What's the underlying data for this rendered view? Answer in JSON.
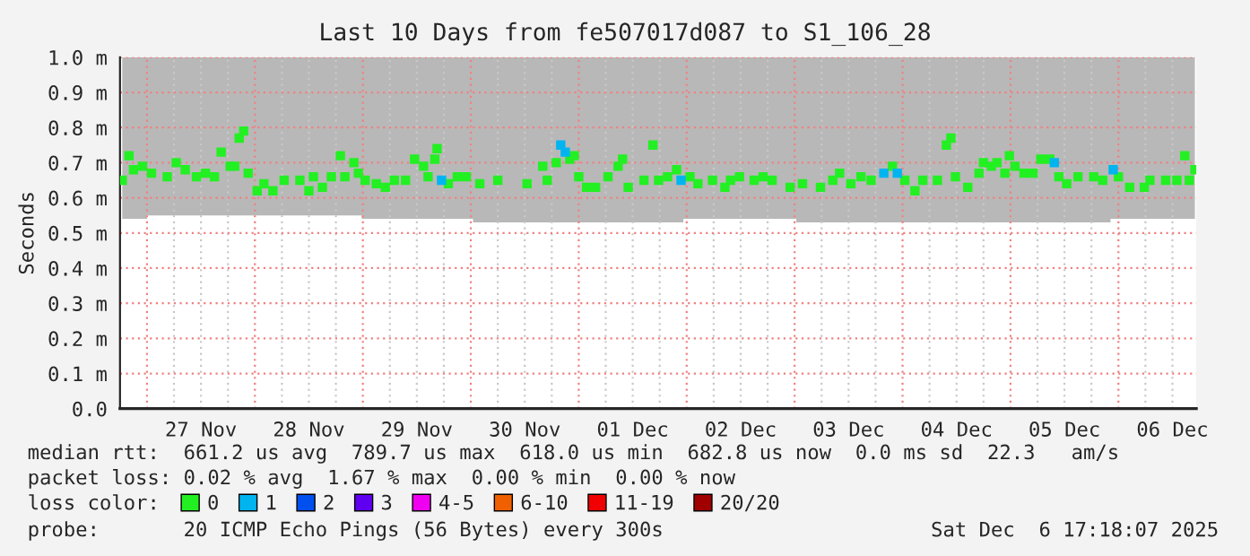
{
  "chart_data": {
    "type": "scatter",
    "title": "Last 10 Days from fe507017d087 to S1_106_28",
    "ylabel": "Seconds",
    "legend_title": "loss color:",
    "legend": "bottom",
    "marker": "square",
    "grid": true,
    "xlim": [
      "2025-11-26T18:00",
      "2025-12-06T17:18"
    ],
    "xticks": [
      {
        "value": "2025-11-27T00:00",
        "label": null
      },
      {
        "value": "2025-11-27T06:00",
        "label": null
      },
      {
        "value": "2025-11-27T12:00",
        "label": "27 Nov"
      },
      {
        "value": "2025-11-27T18:00",
        "label": null
      },
      {
        "value": "2025-11-28T00:00",
        "label": null
      },
      {
        "value": "2025-11-28T06:00",
        "label": null
      },
      {
        "value": "2025-11-28T12:00",
        "label": "28 Nov"
      },
      {
        "value": "2025-11-28T18:00",
        "label": null
      },
      {
        "value": "2025-11-29T00:00",
        "label": null
      },
      {
        "value": "2025-11-29T06:00",
        "label": null
      },
      {
        "value": "2025-11-29T12:00",
        "label": "29 Nov"
      },
      {
        "value": "2025-11-29T18:00",
        "label": null
      },
      {
        "value": "2025-11-30T00:00",
        "label": null
      },
      {
        "value": "2025-11-30T06:00",
        "label": null
      },
      {
        "value": "2025-11-30T12:00",
        "label": "30 Nov"
      },
      {
        "value": "2025-11-30T18:00",
        "label": null
      },
      {
        "value": "2025-12-01T00:00",
        "label": null
      },
      {
        "value": "2025-12-01T06:00",
        "label": null
      },
      {
        "value": "2025-12-01T12:00",
        "label": "01 Dec"
      },
      {
        "value": "2025-12-01T18:00",
        "label": null
      },
      {
        "value": "2025-12-02T00:00",
        "label": null
      },
      {
        "value": "2025-12-02T06:00",
        "label": null
      },
      {
        "value": "2025-12-02T12:00",
        "label": "02 Dec"
      },
      {
        "value": "2025-12-02T18:00",
        "label": null
      },
      {
        "value": "2025-12-03T00:00",
        "label": null
      },
      {
        "value": "2025-12-03T06:00",
        "label": null
      },
      {
        "value": "2025-12-03T12:00",
        "label": "03 Dec"
      },
      {
        "value": "2025-12-03T18:00",
        "label": null
      },
      {
        "value": "2025-12-04T00:00",
        "label": null
      },
      {
        "value": "2025-12-04T06:00",
        "label": null
      },
      {
        "value": "2025-12-04T12:00",
        "label": "04 Dec"
      },
      {
        "value": "2025-12-04T18:00",
        "label": null
      },
      {
        "value": "2025-12-05T00:00",
        "label": null
      },
      {
        "value": "2025-12-05T06:00",
        "label": null
      },
      {
        "value": "2025-12-05T12:00",
        "label": "05 Dec"
      },
      {
        "value": "2025-12-05T18:00",
        "label": null
      },
      {
        "value": "2025-12-06T00:00",
        "label": null
      },
      {
        "value": "2025-12-06T06:00",
        "label": null
      },
      {
        "value": "2025-12-06T12:00",
        "label": "06 Dec"
      }
    ],
    "ylim": [
      0,
      1.0
    ],
    "yticks": [
      {
        "value": 0,
        "label": "0.0"
      },
      {
        "value": 0.1,
        "label": "0.1 m"
      },
      {
        "value": 0.2,
        "label": "0.2 m"
      },
      {
        "value": 0.3,
        "label": "0.3 m"
      },
      {
        "value": 0.4,
        "label": "0.4 m"
      },
      {
        "value": 0.5,
        "label": "0.5 m"
      },
      {
        "value": 0.6,
        "label": "0.6 m"
      },
      {
        "value": 0.7,
        "label": "0.7 m"
      },
      {
        "value": 0.8,
        "label": "0.8 m"
      },
      {
        "value": 0.9,
        "label": "0.9 m"
      },
      {
        "value": 1.0,
        "label": "1.0 m"
      }
    ],
    "series": [
      {
        "name": "0",
        "color": "#22f022",
        "lower": [
          0.54,
          0.54,
          0.54,
          0.54,
          0.55,
          0.55,
          0.55,
          0.55,
          0.55,
          0.55,
          0.55,
          0.55,
          0.55,
          0.55,
          0.55,
          0.55,
          0.55,
          0.55,
          0.55,
          0.55,
          0.55,
          0.55,
          0.55,
          0.55,
          0.55,
          0.55,
          0.55,
          0.55,
          0.55,
          0.55,
          0.54,
          0.54,
          0.54,
          0.54,
          0.54,
          0.54,
          0.54,
          0.54,
          0.54,
          0.54,
          0.54,
          0.54,
          0.54,
          0.53,
          0.53,
          0.53,
          0.53,
          0.53,
          0.53,
          0.53,
          0.53,
          0.53,
          0.53,
          0.53,
          0.53,
          0.53,
          0.53,
          0.53,
          0.53,
          0.53,
          0.53,
          0.53,
          0.53,
          0.54,
          0.54,
          0.54,
          0.54,
          0.54,
          0.54,
          0.54,
          0.54,
          0.54,
          0.54,
          0.53,
          0.53,
          0.53,
          0.53,
          0.53,
          0.53,
          0.53,
          0.53,
          0.53,
          0.53,
          0.53,
          0.53,
          0.53,
          0.53,
          0.53,
          0.53,
          0.53,
          0.53,
          0.53,
          0.53,
          0.53,
          0.53,
          0.53,
          0.53,
          0.53,
          0.53,
          0.53,
          0.53,
          0.53,
          0.53,
          0.53,
          0.53,
          0.54,
          0.54,
          0.54,
          0.54,
          0.54,
          0.54,
          0.54,
          0.54,
          0.54
        ],
        "upper": [
          1.0,
          1.0,
          1.0,
          1.0,
          1.0,
          1.0,
          1.0,
          1.0,
          1.0,
          1.0,
          1.0,
          1.0,
          1.0,
          1.0,
          1.0,
          1.0,
          1.0,
          1.0,
          1.0,
          1.0,
          1.0,
          1.0,
          1.0,
          1.0,
          1.0,
          1.0,
          1.0,
          1.0,
          1.0,
          1.0,
          1.0,
          1.0,
          1.0,
          1.0,
          1.0,
          1.0,
          1.0,
          1.0,
          1.0,
          1.0,
          1.0,
          1.0,
          1.0,
          1.0,
          1.0,
          1.0,
          1.0,
          1.0,
          1.0,
          1.0,
          1.0,
          1.0,
          1.0,
          1.0,
          1.0,
          1.0,
          1.0,
          1.0,
          1.0,
          1.0,
          1.0,
          1.0,
          1.0,
          1.0,
          1.0,
          1.0,
          1.0,
          1.0,
          1.0,
          1.0,
          1.0,
          1.0,
          1.0,
          1.0,
          1.0,
          1.0,
          1.0,
          1.0,
          1.0,
          1.0,
          1.0,
          1.0,
          1.0,
          1.0,
          1.0,
          1.0,
          1.0,
          1.0,
          1.0,
          1.0,
          1.0,
          1.0,
          1.0,
          1.0,
          1.0,
          1.0,
          1.0,
          1.0,
          1.0,
          1.0,
          1.0,
          1.0,
          1.0,
          1.0,
          1.0,
          1.0,
          1.0,
          1.0,
          1.0,
          1.0,
          1.0,
          1.0,
          1.0,
          1.0
        ],
        "x": [
          "2025-11-26T18:30",
          "2025-11-26T20:00",
          "2025-11-26T21:00",
          "2025-11-26T23:00",
          "2025-11-27T01:00",
          "2025-11-27T04:30",
          "2025-11-27T06:30",
          "2025-11-27T08:30",
          "2025-11-27T11:00",
          "2025-11-27T13:00",
          "2025-11-27T15:00",
          "2025-11-27T16:30",
          "2025-11-27T18:30",
          "2025-11-27T19:30",
          "2025-11-27T20:30",
          "2025-11-27T21:30",
          "2025-11-27T22:30",
          "2025-11-28T00:30",
          "2025-11-28T02:00",
          "2025-11-28T04:00",
          "2025-11-28T06:30",
          "2025-11-28T10:00",
          "2025-11-28T12:00",
          "2025-11-28T13:00",
          "2025-11-28T15:00",
          "2025-11-28T17:00",
          "2025-11-28T19:00",
          "2025-11-28T20:00",
          "2025-11-28T22:00",
          "2025-11-28T23:00",
          "2025-11-29T00:30",
          "2025-11-29T03:00",
          "2025-11-29T05:00",
          "2025-11-29T07:00",
          "2025-11-29T09:30",
          "2025-11-29T11:30",
          "2025-11-29T13:30",
          "2025-11-29T14:30",
          "2025-11-29T16:00",
          "2025-11-29T16:30",
          "2025-11-29T19:00",
          "2025-11-29T21:00",
          "2025-11-29T23:00",
          "2025-11-30T02:00",
          "2025-11-30T06:00",
          "2025-11-30T12:30",
          "2025-11-30T16:00",
          "2025-11-30T17:00",
          "2025-11-30T19:00",
          "2025-11-30T22:00",
          "2025-11-30T23:00",
          "2025-12-01T00:00",
          "2025-12-01T01:45",
          "2025-12-01T03:45",
          "2025-12-01T06:30",
          "2025-12-01T08:45",
          "2025-12-01T09:45",
          "2025-12-01T11:00",
          "2025-12-01T14:30",
          "2025-12-01T16:30",
          "2025-12-01T17:45",
          "2025-12-01T19:45",
          "2025-12-01T21:45",
          "2025-12-02T00:45",
          "2025-12-02T02:30",
          "2025-12-02T05:45",
          "2025-12-02T08:30",
          "2025-12-02T09:45",
          "2025-12-02T11:45",
          "2025-12-02T15:00",
          "2025-12-02T17:00",
          "2025-12-02T19:00",
          "2025-12-02T23:00",
          "2025-12-03T01:45",
          "2025-12-03T05:45",
          "2025-12-03T08:30",
          "2025-12-03T10:00",
          "2025-12-03T12:30",
          "2025-12-03T14:45",
          "2025-12-03T17:00",
          "2025-12-03T21:45",
          "2025-12-04T00:30",
          "2025-12-04T02:45",
          "2025-12-04T04:30",
          "2025-12-04T07:45",
          "2025-12-04T09:45",
          "2025-12-04T10:45",
          "2025-12-04T11:45",
          "2025-12-04T14:30",
          "2025-12-04T17:00",
          "2025-12-04T18:00",
          "2025-12-04T19:45",
          "2025-12-04T21:00",
          "2025-12-04T22:45",
          "2025-12-04T23:45",
          "2025-12-05T01:00",
          "2025-12-05T03:00",
          "2025-12-05T05:00",
          "2025-12-05T06:45",
          "2025-12-05T08:45",
          "2025-12-05T10:45",
          "2025-12-05T12:30",
          "2025-12-05T15:00",
          "2025-12-05T18:30",
          "2025-12-05T20:30",
          "2025-12-06T00:00",
          "2025-12-06T02:30",
          "2025-12-06T05:45",
          "2025-12-06T07:00",
          "2025-12-06T10:30",
          "2025-12-06T13:00",
          "2025-12-06T14:45",
          "2025-12-06T15:45",
          "2025-12-06T17:00"
        ],
        "values": [
          0.65,
          0.72,
          0.68,
          0.69,
          0.67,
          0.66,
          0.7,
          0.68,
          0.66,
          0.67,
          0.66,
          0.73,
          0.69,
          0.69,
          0.77,
          0.79,
          0.67,
          0.62,
          0.64,
          0.62,
          0.65,
          0.65,
          0.62,
          0.66,
          0.63,
          0.66,
          0.72,
          0.66,
          0.7,
          0.67,
          0.65,
          0.64,
          0.63,
          0.65,
          0.65,
          0.71,
          0.69,
          0.66,
          0.71,
          0.74,
          0.64,
          0.66,
          0.66,
          0.64,
          0.65,
          0.64,
          0.69,
          0.65,
          0.7,
          0.71,
          0.72,
          0.66,
          0.63,
          0.63,
          0.66,
          0.69,
          0.71,
          0.63,
          0.65,
          0.75,
          0.65,
          0.66,
          0.68,
          0.66,
          0.64,
          0.65,
          0.63,
          0.65,
          0.66,
          0.65,
          0.66,
          0.65,
          0.63,
          0.64,
          0.63,
          0.65,
          0.67,
          0.64,
          0.66,
          0.65,
          0.69,
          0.65,
          0.62,
          0.65,
          0.65,
          0.75,
          0.77,
          0.66,
          0.63,
          0.67,
          0.7,
          0.69,
          0.7,
          0.67,
          0.72,
          0.69,
          0.67,
          0.67,
          0.71,
          0.71,
          0.66,
          0.64,
          0.66,
          0.66,
          0.65,
          0.66,
          0.63,
          0.63,
          0.65,
          0.65,
          0.65,
          0.72,
          0.65,
          0.68
        ]
      },
      {
        "name": "1",
        "color": "#00b4f0",
        "x": [
          "2025-11-29T17:30",
          "2025-11-30T20:00",
          "2025-11-30T21:00",
          "2025-12-01T22:45",
          "2025-12-03T19:50",
          "2025-12-03T22:50",
          "2025-12-05T09:45",
          "2025-12-05T22:50"
        ],
        "values": [
          0.65,
          0.75,
          0.73,
          0.65,
          0.67,
          0.67,
          0.7,
          0.68
        ]
      },
      {
        "name": "2",
        "color": "#0050f0"
      },
      {
        "name": "3",
        "color": "#6000f0"
      },
      {
        "name": "4-5",
        "color": "#f000f0"
      },
      {
        "name": "6-10",
        "color": "#f06000"
      },
      {
        "name": "11-19",
        "color": "#f00000"
      },
      {
        "name": "20/20",
        "color": "#a00000"
      }
    ],
    "annotations": [
      "median rtt:  661.2 us avg  789.7 us max  618.0 us min  682.8 us now  0.0 ms sd  22.3   am/s",
      "packet loss: 0.02 % avg  1.67 % max  0.00 % min  0.00 % now",
      "probe:       20 ICMP Echo Pings (56 Bytes) every 300s",
      "Sat Dec  6 17:18:07 2025"
    ]
  }
}
